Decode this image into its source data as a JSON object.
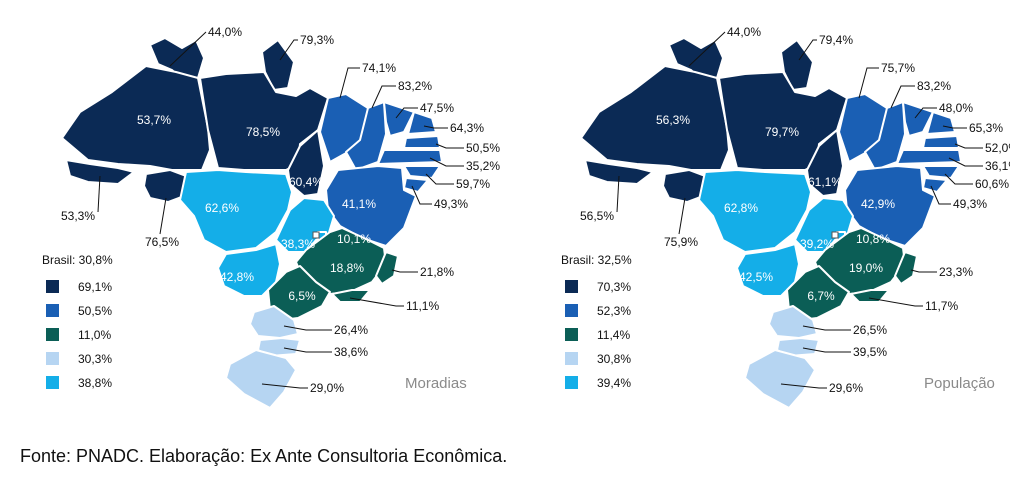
{
  "colors": {
    "N": "#0b2a55",
    "NE": "#1a5fb4",
    "SE": "#0b5e56",
    "S": "#b6d5f2",
    "CO": "#14aee8",
    "border": "#ffffff"
  },
  "maps": [
    {
      "title": "Moradias",
      "legend_title": "Brasil: 30,8%",
      "legend": [
        {
          "color": "#0b2a55",
          "label": "69,1%"
        },
        {
          "color": "#1a5fb4",
          "label": "50,5%"
        },
        {
          "color": "#0b5e56",
          "label": "11,0%"
        },
        {
          "color": "#b6d5f2",
          "label": "30,3%"
        },
        {
          "color": "#14aee8",
          "label": "38,8%"
        }
      ],
      "states": {
        "RR": "44,0%",
        "AP": "79,3%",
        "AM": "53,7%",
        "PA": "78,5%",
        "AC": "53,3%",
        "RO": "76,5%",
        "TO": "60,4%",
        "MA": "74,1%",
        "PI": "83,2%",
        "CE": "47,5%",
        "RN": "64,3%",
        "PB": "50,5%",
        "PE": "35,2%",
        "AL": "59,7%",
        "SE": "49,3%",
        "BA": "41,1%",
        "MT": "62,6%",
        "GO": "38,3%",
        "DF": "10,1%",
        "MS": "42,8%",
        "MG": "18,8%",
        "ES": "21,8%",
        "SP": "6,5%",
        "RJ": "11,1%",
        "PR": "26,4%",
        "SC": "38,6%",
        "RS": "29,0%"
      }
    },
    {
      "title": "População",
      "legend_title": "Brasil: 32,5%",
      "legend": [
        {
          "color": "#0b2a55",
          "label": "70,3%"
        },
        {
          "color": "#1a5fb4",
          "label": "52,3%"
        },
        {
          "color": "#0b5e56",
          "label": "11,4%"
        },
        {
          "color": "#b6d5f2",
          "label": "30,8%"
        },
        {
          "color": "#14aee8",
          "label": "39,4%"
        }
      ],
      "states": {
        "RR": "44,0%",
        "AP": "79,4%",
        "AM": "56,3%",
        "PA": "79,7%",
        "AC": "56,5%",
        "RO": "75,9%",
        "TO": "61,1%",
        "MA": "75,7%",
        "PI": "83,2%",
        "CE": "48,0%",
        "RN": "65,3%",
        "PB": "52,0%",
        "PE": "36,1%",
        "AL": "60,6%",
        "SE": "49,3%",
        "BA": "42,9%",
        "MT": "62,8%",
        "GO": "39,2%",
        "DF": "10,8%",
        "MS": "42,5%",
        "MG": "19,0%",
        "ES": "23,3%",
        "SP": "6,7%",
        "RJ": "11,7%",
        "PR": "26,5%",
        "SC": "39,5%",
        "RS": "29,6%"
      }
    }
  ],
  "source": "Fonte: PNADC. Elaboração: Ex Ante Consultoria Econômica."
}
